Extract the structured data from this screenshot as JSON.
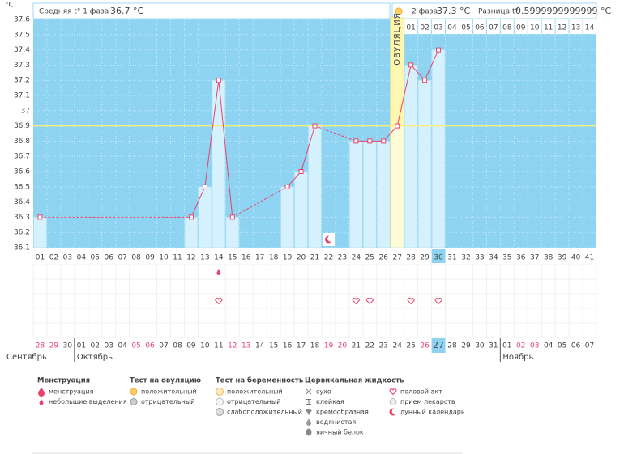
{
  "header": {
    "unit": "°C",
    "phase1_label": "Средняя t° 1 фаза",
    "phase1_value": "36.7 °C",
    "phase2_label": "2 фаза",
    "phase2_value": "37.3 °C",
    "diff_label": "Разница t°",
    "diff_value": "0.5999999999999 °C"
  },
  "chart_data": {
    "type": "line",
    "color": "#e8446b",
    "bar_color": "#d4f1fd",
    "categories": [
      "01",
      "02",
      "03",
      "04",
      "05",
      "06",
      "07",
      "08",
      "09",
      "10",
      "11",
      "12",
      "13",
      "14",
      "15",
      "16",
      "17",
      "18",
      "19",
      "20",
      "21",
      "22",
      "23",
      "24",
      "25",
      "26",
      "27",
      "28",
      "29",
      "30",
      "31",
      "32",
      "33",
      "34",
      "35",
      "36",
      "37",
      "38",
      "39",
      "40",
      "41"
    ],
    "values": [
      36.3,
      null,
      null,
      null,
      null,
      null,
      null,
      null,
      null,
      null,
      null,
      36.3,
      36.5,
      37.2,
      36.3,
      null,
      null,
      null,
      36.5,
      36.6,
      36.9,
      null,
      null,
      36.8,
      36.8,
      36.8,
      36.9,
      37.3,
      37.2,
      37.4,
      null,
      null,
      null,
      null,
      null,
      null,
      null,
      null,
      null,
      null,
      null
    ],
    "ylim": [
      36.1,
      37.6
    ],
    "yticks": [
      36.1,
      36.2,
      36.3,
      36.4,
      36.5,
      36.6,
      36.7,
      36.8,
      36.9,
      37,
      37.1,
      37.2,
      37.3,
      37.4,
      37.5,
      37.6
    ],
    "grid": true,
    "coverline": 36.9,
    "ovulation_day": 27,
    "ovulation_label": "ОВУЛЯЦИЯ",
    "post_ovulation_days": [
      "01",
      "02",
      "03",
      "04",
      "05",
      "06",
      "07",
      "08",
      "09",
      "10",
      "11",
      "12",
      "13",
      "14"
    ],
    "today_day": 30,
    "spotting_days": [
      14
    ],
    "intercourse_days": [
      14,
      24,
      25,
      28,
      30
    ],
    "lunar_days": [
      22
    ],
    "months": [
      {
        "name": "Сентябрь",
        "dates": [
          {
            "label": "28",
            "red": true
          },
          {
            "label": "29",
            "red": true
          },
          {
            "label": "30"
          }
        ]
      },
      {
        "name": "Октябрь",
        "dates": [
          {
            "label": "01"
          },
          {
            "label": "02"
          },
          {
            "label": "03"
          },
          {
            "label": "04"
          },
          {
            "label": "05",
            "red": true
          },
          {
            "label": "06",
            "red": true
          },
          {
            "label": "07"
          },
          {
            "label": "08"
          },
          {
            "label": "09"
          },
          {
            "label": "10"
          },
          {
            "label": "11"
          },
          {
            "label": "12",
            "red": true
          },
          {
            "label": "13",
            "red": true
          },
          {
            "label": "14"
          },
          {
            "label": "15"
          },
          {
            "label": "16"
          },
          {
            "label": "17"
          },
          {
            "label": "18"
          },
          {
            "label": "19",
            "red": true
          },
          {
            "label": "20",
            "red": true
          },
          {
            "label": "21"
          },
          {
            "label": "22"
          },
          {
            "label": "23"
          },
          {
            "label": "24"
          },
          {
            "label": "25"
          },
          {
            "label": "26",
            "red": true
          },
          {
            "label": "27"
          },
          {
            "label": "28"
          },
          {
            "label": "29"
          },
          {
            "label": "30"
          },
          {
            "label": "31"
          }
        ]
      },
      {
        "name": "Ноябрь",
        "dates": [
          {
            "label": "01"
          },
          {
            "label": "02",
            "red": true
          },
          {
            "label": "03",
            "red": true
          },
          {
            "label": "04"
          },
          {
            "label": "05"
          },
          {
            "label": "06"
          },
          {
            "label": "07"
          }
        ]
      }
    ]
  },
  "legend": [
    {
      "title": "Менструация",
      "items": [
        {
          "label": "менструация",
          "icon": "drop-large"
        },
        {
          "label": "небольшие выделения",
          "icon": "drop-small"
        }
      ]
    },
    {
      "title": "Тест на овуляцию",
      "items": [
        {
          "label": "положительный",
          "icon": "sun"
        },
        {
          "label": "отрицательный",
          "icon": "sun-gray"
        }
      ]
    },
    {
      "title": "Тест на беременность",
      "items": [
        {
          "label": "положительный",
          "icon": "preg-pos"
        },
        {
          "label": "отрицательный",
          "icon": "preg-neg"
        },
        {
          "label": "слабоположительный",
          "icon": "preg-weak"
        }
      ]
    },
    {
      "title": "Цервикальная жидкость",
      "items": [
        {
          "label": "сухо",
          "icon": "cross"
        },
        {
          "label": "клейкая",
          "icon": "t"
        },
        {
          "label": "кремообразная",
          "icon": "swirl"
        },
        {
          "label": "водянистая",
          "icon": "drop-gray"
        },
        {
          "label": "яичный белок",
          "icon": "egg"
        }
      ]
    },
    {
      "items": [
        {
          "label": "половой акт",
          "icon": "heart"
        },
        {
          "label": "прием лекарств",
          "icon": "pill"
        },
        {
          "label": "лунный календарь",
          "icon": "moon"
        }
      ]
    }
  ]
}
